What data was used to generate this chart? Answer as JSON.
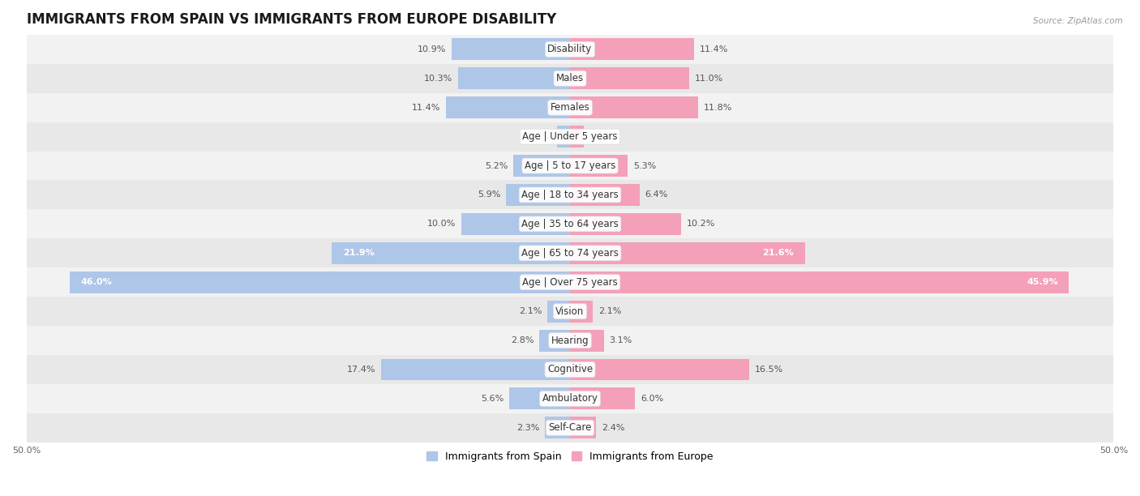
{
  "title": "IMMIGRANTS FROM SPAIN VS IMMIGRANTS FROM EUROPE DISABILITY",
  "source": "Source: ZipAtlas.com",
  "categories": [
    "Disability",
    "Males",
    "Females",
    "Age | Under 5 years",
    "Age | 5 to 17 years",
    "Age | 18 to 34 years",
    "Age | 35 to 64 years",
    "Age | 65 to 74 years",
    "Age | Over 75 years",
    "Vision",
    "Hearing",
    "Cognitive",
    "Ambulatory",
    "Self-Care"
  ],
  "spain_values": [
    10.9,
    10.3,
    11.4,
    1.2,
    5.2,
    5.9,
    10.0,
    21.9,
    46.0,
    2.1,
    2.8,
    17.4,
    5.6,
    2.3
  ],
  "europe_values": [
    11.4,
    11.0,
    11.8,
    1.3,
    5.3,
    6.4,
    10.2,
    21.6,
    45.9,
    2.1,
    3.1,
    16.5,
    6.0,
    2.4
  ],
  "spain_color": "#aec6e8",
  "europe_color": "#f4a0b8",
  "spain_color_dark": "#5b9bd5",
  "europe_color_dark": "#e8547a",
  "spain_label": "Immigrants from Spain",
  "europe_label": "Immigrants from Europe",
  "axis_limit": 50.0,
  "row_bg_colors": [
    "#f2f2f2",
    "#e8e8e8"
  ],
  "title_fontsize": 12,
  "label_fontsize": 8.5,
  "value_fontsize": 8,
  "axis_label_fontsize": 8
}
